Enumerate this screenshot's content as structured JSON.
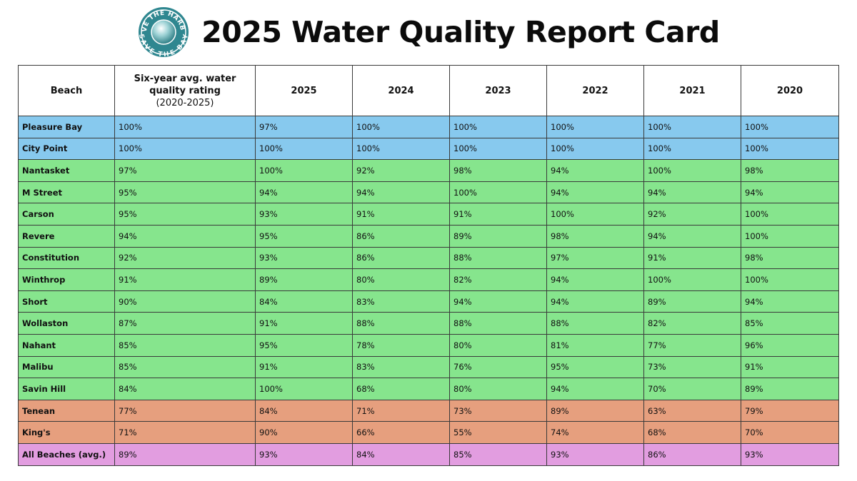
{
  "logo": {
    "top_text": "SAVE THE HARBOR",
    "bottom_text": "SAVE THE BAY"
  },
  "title": "2025 Water Quality Report Card",
  "colors": {
    "blue": "#87c9ee",
    "green": "#86e58d",
    "orange": "#e69f7e",
    "purple": "#e29de0"
  },
  "table": {
    "headers": {
      "beach": "Beach",
      "avg_line1": "Six-year avg. water",
      "avg_line2": "quality rating",
      "avg_sub": "(2020-2025)",
      "y2025": "2025",
      "y2024": "2024",
      "y2023": "2023",
      "y2022": "2022",
      "y2021": "2021",
      "y2020": "2020"
    },
    "rows": [
      {
        "beach": "Pleasure Bay",
        "avg": "100%",
        "v2025": "97%",
        "v2024": "100%",
        "v2023": "100%",
        "v2022": "100%",
        "v2021": "100%",
        "v2020": "100%"
      },
      {
        "beach": "City Point",
        "avg": "100%",
        "v2025": "100%",
        "v2024": "100%",
        "v2023": "100%",
        "v2022": "100%",
        "v2021": "100%",
        "v2020": "100%"
      },
      {
        "beach": "Nantasket",
        "avg": "97%",
        "v2025": "100%",
        "v2024": "92%",
        "v2023": "98%",
        "v2022": "94%",
        "v2021": "100%",
        "v2020": "98%"
      },
      {
        "beach": "M Street",
        "avg": "95%",
        "v2025": "94%",
        "v2024": "94%",
        "v2023": "100%",
        "v2022": "94%",
        "v2021": "94%",
        "v2020": "94%"
      },
      {
        "beach": "Carson",
        "avg": "95%",
        "v2025": "93%",
        "v2024": "91%",
        "v2023": "91%",
        "v2022": "100%",
        "v2021": "92%",
        "v2020": "100%"
      },
      {
        "beach": "Revere",
        "avg": "94%",
        "v2025": "95%",
        "v2024": "86%",
        "v2023": "89%",
        "v2022": "98%",
        "v2021": "94%",
        "v2020": "100%"
      },
      {
        "beach": "Constitution",
        "avg": "92%",
        "v2025": "93%",
        "v2024": "86%",
        "v2023": "88%",
        "v2022": "97%",
        "v2021": "91%",
        "v2020": "98%"
      },
      {
        "beach": "Winthrop",
        "avg": "91%",
        "v2025": "89%",
        "v2024": "80%",
        "v2023": "82%",
        "v2022": "94%",
        "v2021": "100%",
        "v2020": "100%"
      },
      {
        "beach": "Short",
        "avg": "90%",
        "v2025": "84%",
        "v2024": "83%",
        "v2023": "94%",
        "v2022": "94%",
        "v2021": "89%",
        "v2020": "94%"
      },
      {
        "beach": "Wollaston",
        "avg": "87%",
        "v2025": "91%",
        "v2024": "88%",
        "v2023": "88%",
        "v2022": "88%",
        "v2021": "82%",
        "v2020": "85%"
      },
      {
        "beach": "Nahant",
        "avg": "85%",
        "v2025": "95%",
        "v2024": "78%",
        "v2023": "80%",
        "v2022": "81%",
        "v2021": "77%",
        "v2020": "96%"
      },
      {
        "beach": "Malibu",
        "avg": "85%",
        "v2025": "91%",
        "v2024": "83%",
        "v2023": "76%",
        "v2022": "95%",
        "v2021": "73%",
        "v2020": "91%"
      },
      {
        "beach": "Savin Hill",
        "avg": "84%",
        "v2025": "100%",
        "v2024": "68%",
        "v2023": "80%",
        "v2022": "94%",
        "v2021": "70%",
        "v2020": "89%"
      },
      {
        "beach": "Tenean",
        "avg": "77%",
        "v2025": "84%",
        "v2024": "71%",
        "v2023": "73%",
        "v2022": "89%",
        "v2021": "63%",
        "v2020": "79%"
      },
      {
        "beach": "King's",
        "avg": "71%",
        "v2025": "90%",
        "v2024": "66%",
        "v2023": "55%",
        "v2022": "74%",
        "v2021": "68%",
        "v2020": "70%"
      },
      {
        "beach": "All Beaches (avg.)",
        "avg": "89%",
        "v2025": "93%",
        "v2024": "84%",
        "v2023": "85%",
        "v2022": "93%",
        "v2021": "86%",
        "v2020": "93%"
      }
    ]
  }
}
